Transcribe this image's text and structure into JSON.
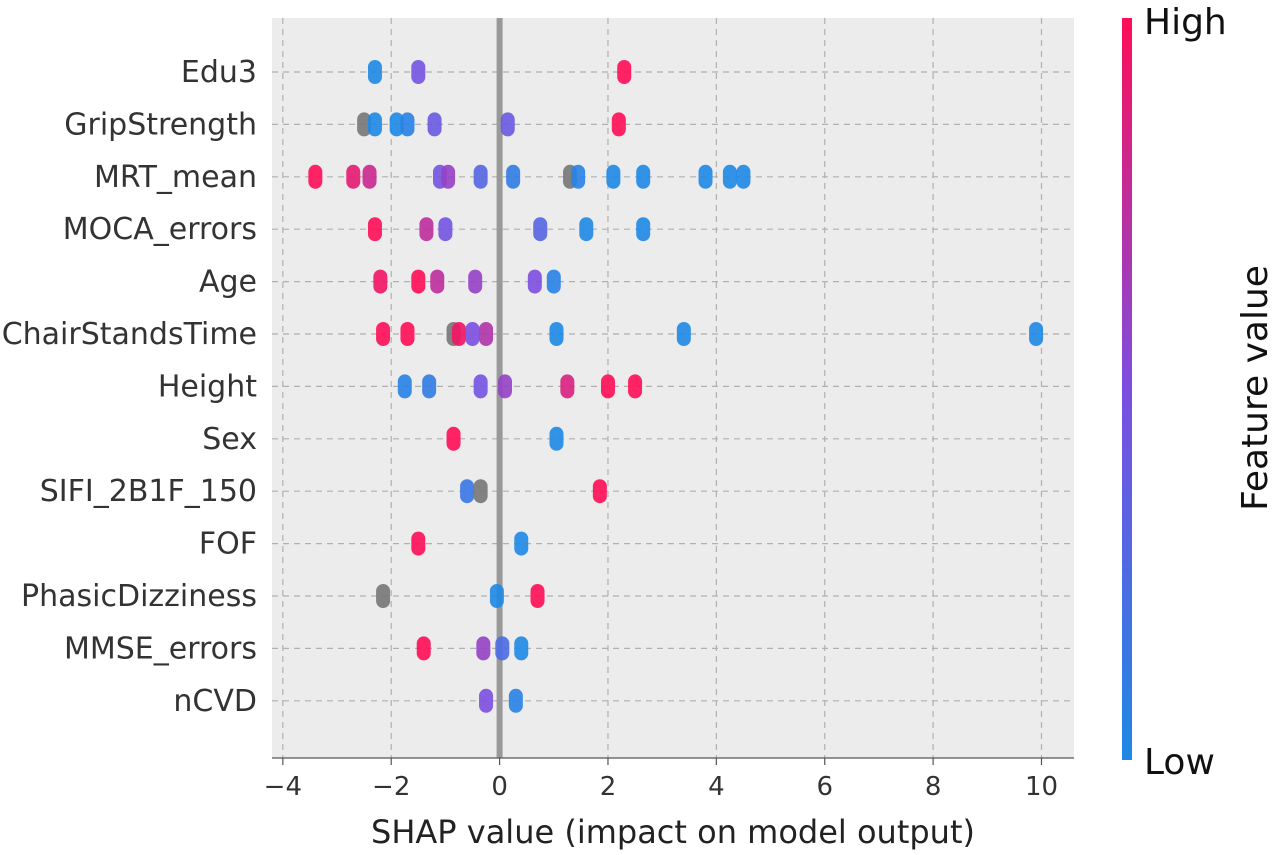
{
  "chart_data": {
    "type": "scatter",
    "subtype": "shap-beeswarm",
    "xlabel": "SHAP value (impact on model output)",
    "xlim": [
      -4.2,
      10.6
    ],
    "xticks": [
      -4,
      -2,
      0,
      2,
      4,
      6,
      8,
      10
    ],
    "xtick_labels": [
      "−4",
      "−2",
      "0",
      "2",
      "4",
      "6",
      "8",
      "10"
    ],
    "grid": true,
    "colorbar": {
      "label": "Feature value",
      "high": "High",
      "low": "Low",
      "low_color": "#1e88e5",
      "high_color": "#ff0d57"
    },
    "colors": {
      "panel_bg": "#ececec",
      "grid": "#b0b0b0",
      "zero_line": "#999999",
      "missing": "#777777"
    },
    "features": [
      {
        "name": "Edu3",
        "points": [
          [
            -2.3,
            0.0
          ],
          [
            -1.5,
            0.45
          ],
          [
            2.3,
            1.0
          ]
        ]
      },
      {
        "name": "GripStrength",
        "points": [
          [
            -2.5,
            -1
          ],
          [
            -2.3,
            0.0
          ],
          [
            -1.9,
            0.0
          ],
          [
            -1.7,
            0.05
          ],
          [
            -1.2,
            0.4
          ],
          [
            0.15,
            0.4
          ],
          [
            2.2,
            1.0
          ]
        ]
      },
      {
        "name": "MRT_mean",
        "points": [
          [
            -3.4,
            1.0
          ],
          [
            -2.7,
            0.9
          ],
          [
            -2.4,
            0.8
          ],
          [
            -1.1,
            0.45
          ],
          [
            -0.95,
            0.6
          ],
          [
            -0.35,
            0.3
          ],
          [
            0.25,
            0.1
          ],
          [
            1.3,
            -1
          ],
          [
            1.45,
            0.05
          ],
          [
            2.1,
            0.0
          ],
          [
            2.65,
            0.0
          ],
          [
            3.8,
            0.0
          ],
          [
            4.25,
            0.0
          ],
          [
            4.5,
            0.0
          ]
        ]
      },
      {
        "name": "MOCA_errors",
        "points": [
          [
            -2.3,
            1.0
          ],
          [
            -1.35,
            0.75
          ],
          [
            -1.0,
            0.45
          ],
          [
            0.75,
            0.3
          ],
          [
            1.6,
            0.0
          ],
          [
            2.65,
            0.0
          ]
        ]
      },
      {
        "name": "Age",
        "points": [
          [
            -2.2,
            0.95
          ],
          [
            -1.5,
            1.0
          ],
          [
            -1.15,
            0.75
          ],
          [
            -0.45,
            0.6
          ],
          [
            0.65,
            0.5
          ],
          [
            1.0,
            0.05
          ]
        ]
      },
      {
        "name": "ChairStandsTime",
        "points": [
          [
            -2.15,
            1.0
          ],
          [
            -1.7,
            1.0
          ],
          [
            -0.85,
            -1
          ],
          [
            -0.75,
            0.95
          ],
          [
            -0.5,
            0.5
          ],
          [
            -0.25,
            0.7
          ],
          [
            1.05,
            0.0
          ],
          [
            3.4,
            0.0
          ],
          [
            9.9,
            0.0
          ]
        ]
      },
      {
        "name": "Height",
        "points": [
          [
            -1.75,
            0.05
          ],
          [
            -1.3,
            0.1
          ],
          [
            -0.35,
            0.45
          ],
          [
            0.1,
            0.6
          ],
          [
            1.25,
            0.85
          ],
          [
            2.0,
            1.0
          ],
          [
            2.5,
            1.0
          ]
        ]
      },
      {
        "name": "Sex",
        "points": [
          [
            -0.85,
            1.0
          ],
          [
            1.05,
            0.0
          ]
        ]
      },
      {
        "name": "SIFI_2B1F_150",
        "points": [
          [
            -0.6,
            0.15
          ],
          [
            -0.35,
            -1
          ],
          [
            1.85,
            1.0
          ]
        ]
      },
      {
        "name": "FOF",
        "points": [
          [
            -1.5,
            1.0
          ],
          [
            0.4,
            0.0
          ]
        ]
      },
      {
        "name": "PhasicDizziness",
        "points": [
          [
            -2.15,
            -1
          ],
          [
            -0.05,
            0.0
          ],
          [
            0.7,
            1.0
          ]
        ]
      },
      {
        "name": "MMSE_errors",
        "points": [
          [
            -1.4,
            1.0
          ],
          [
            -0.3,
            0.6
          ],
          [
            0.05,
            0.25
          ],
          [
            0.4,
            0.0
          ]
        ]
      },
      {
        "name": "nCVD",
        "points": [
          [
            -0.25,
            0.5
          ],
          [
            0.3,
            0.05
          ]
        ]
      }
    ]
  }
}
